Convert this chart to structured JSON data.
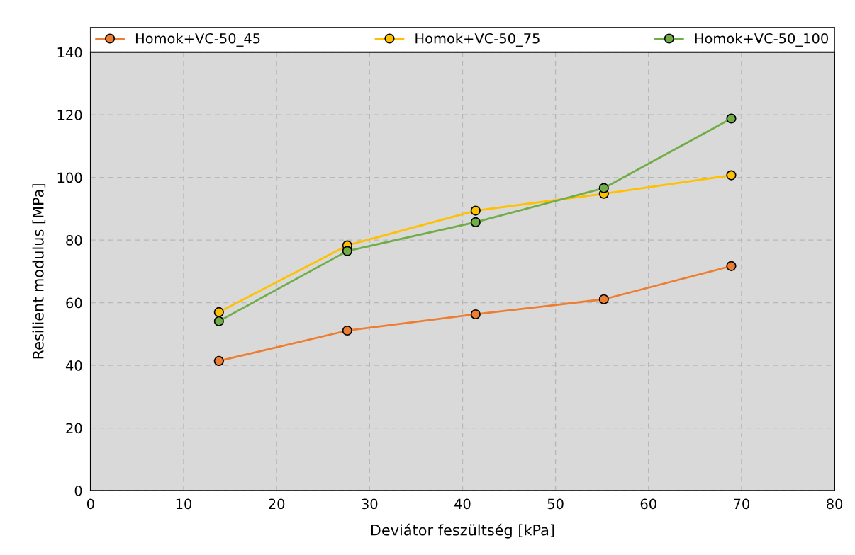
{
  "chart_data": {
    "type": "line",
    "xlabel": "Deviátor feszültség [kPa]",
    "ylabel": "Resilient modulus [MPa]",
    "x": [
      13.8,
      27.6,
      41.4,
      55.2,
      68.9
    ],
    "series": [
      {
        "name": "Homok+VC-50_45",
        "color": "#ed7d31",
        "values": [
          41.4,
          51.1,
          56.3,
          61.1,
          71.7
        ]
      },
      {
        "name": "Homok+VC-50_75",
        "color": "#ffc000",
        "values": [
          57.0,
          78.3,
          89.4,
          94.8,
          100.7
        ]
      },
      {
        "name": "Homok+VC-50_100",
        "color": "#70ad47",
        "values": [
          54.1,
          76.5,
          85.7,
          96.6,
          118.8
        ]
      }
    ],
    "xlim": [
      0,
      80
    ],
    "xticks": [
      0,
      10,
      20,
      30,
      40,
      50,
      60,
      70,
      80
    ],
    "ylim": [
      0,
      140
    ],
    "yticks": [
      0,
      20,
      40,
      60,
      80,
      100,
      120,
      140
    ],
    "grid": true,
    "legend": "top",
    "marker": "circle",
    "line_style": "solid"
  }
}
